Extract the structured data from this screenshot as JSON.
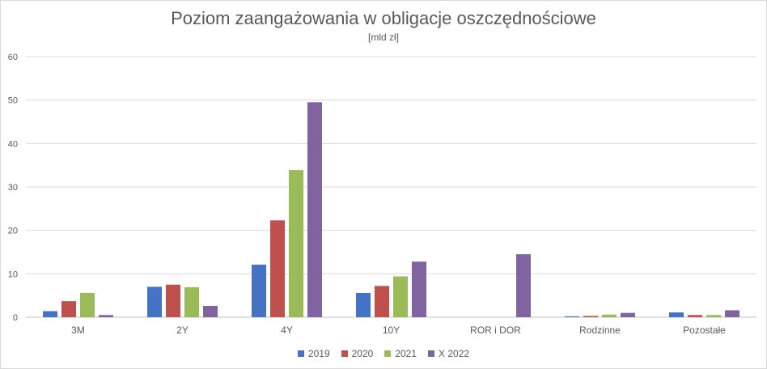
{
  "chart_data": {
    "type": "bar",
    "title": "Poziom zaangażowania w obligacje oszczędnościowe",
    "subtitle": "[mld zł]",
    "xlabel": "",
    "ylabel": "",
    "ylim": [
      0,
      60
    ],
    "yticks": [
      "0",
      "10",
      "20",
      "30",
      "40",
      "50",
      "60"
    ],
    "grid": true,
    "legend_position": "bottom",
    "categories": [
      "3M",
      "2Y",
      "4Y",
      "10Y",
      "ROR i DOR",
      "Rodzinne",
      "Pozostałe"
    ],
    "series": [
      {
        "name": "2019",
        "color": "#4472c4",
        "values": [
          1.4,
          7.0,
          12.1,
          5.6,
          0,
          0.2,
          1.1
        ]
      },
      {
        "name": "2020",
        "color": "#c0504d",
        "values": [
          3.7,
          7.5,
          22.3,
          7.2,
          0,
          0.3,
          0.5
        ]
      },
      {
        "name": "2021",
        "color": "#9bbb59",
        "values": [
          5.6,
          6.9,
          33.9,
          9.4,
          0,
          0.6,
          0.5
        ]
      },
      {
        "name": "X 2022",
        "color": "#8064a2",
        "values": [
          0.5,
          2.6,
          49.5,
          12.8,
          14.5,
          1.0,
          1.6
        ]
      }
    ]
  }
}
